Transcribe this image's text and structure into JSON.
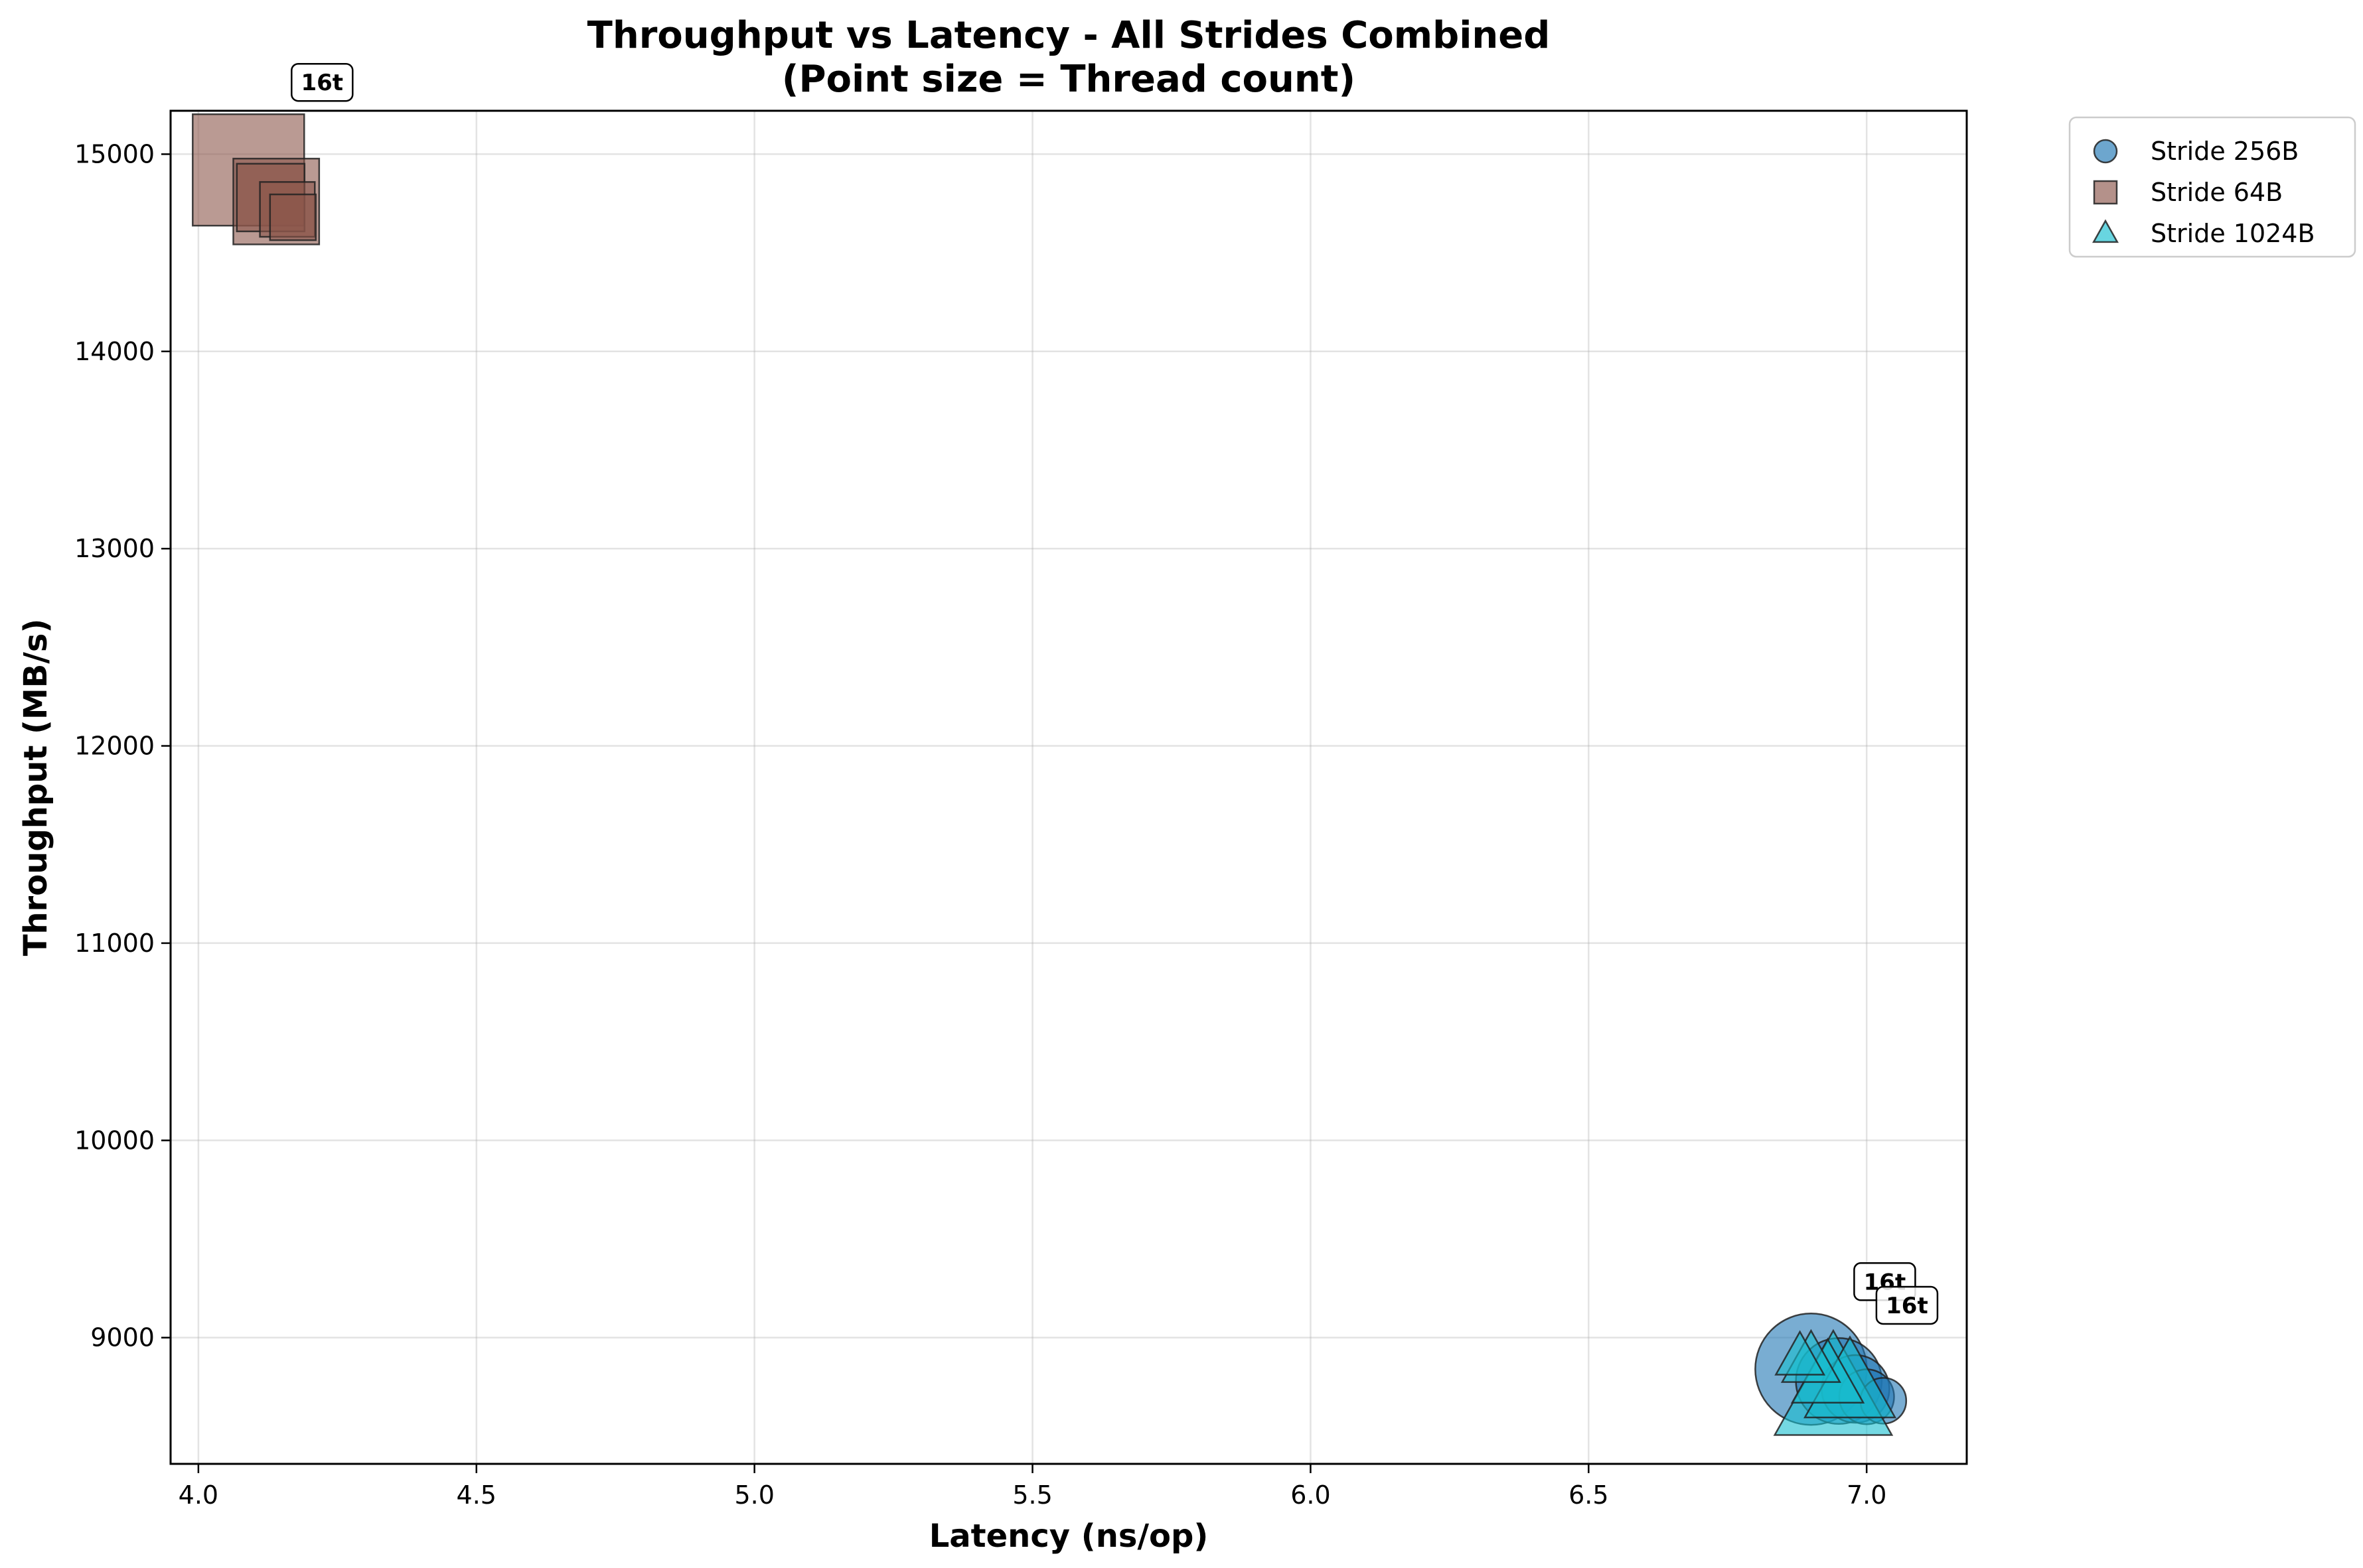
{
  "chart_data": {
    "type": "scatter",
    "title": "Throughput vs Latency - All Strides Combined",
    "subtitle": "(Point size = Thread count)",
    "xlabel": "Latency (ns/op)",
    "ylabel": "Throughput (MB/s)",
    "xlim": [
      3.95,
      7.18
    ],
    "ylim": [
      8360,
      15220
    ],
    "xticks": [
      "4.0",
      "4.5",
      "5.0",
      "5.5",
      "6.0",
      "6.5",
      "7.0"
    ],
    "yticks": [
      "9000",
      "10000",
      "11000",
      "12000",
      "13000",
      "14000",
      "15000"
    ],
    "grid": true,
    "legend_position": "outside-top-right",
    "series": [
      {
        "name": "Stride 256B",
        "marker": "circle",
        "color": "#1f77b4",
        "points": [
          {
            "x": 7.03,
            "y": 8680,
            "threads": 1
          },
          {
            "x": 7.0,
            "y": 8700,
            "threads": 2
          },
          {
            "x": 6.98,
            "y": 8740,
            "threads": 4
          },
          {
            "x": 6.95,
            "y": 8780,
            "threads": 8
          },
          {
            "x": 6.9,
            "y": 8840,
            "threads": 16
          }
        ]
      },
      {
        "name": "Stride 64B",
        "marker": "square",
        "color": "#8c564b",
        "points": [
          {
            "x": 4.17,
            "y": 14680,
            "threads": 1
          },
          {
            "x": 4.16,
            "y": 14720,
            "threads": 2
          },
          {
            "x": 4.13,
            "y": 14780,
            "threads": 4
          },
          {
            "x": 4.14,
            "y": 14760,
            "threads": 8
          },
          {
            "x": 4.09,
            "y": 14920,
            "threads": 16
          }
        ]
      },
      {
        "name": "Stride 1024B",
        "marker": "triangle",
        "color": "#17becf",
        "points": [
          {
            "x": 6.88,
            "y": 8900,
            "threads": 1
          },
          {
            "x": 6.9,
            "y": 8880,
            "threads": 2
          },
          {
            "x": 6.93,
            "y": 8800,
            "threads": 4
          },
          {
            "x": 6.97,
            "y": 8760,
            "threads": 8
          },
          {
            "x": 6.94,
            "y": 8720,
            "threads": 16
          }
        ]
      }
    ],
    "annotations": [
      {
        "text": "16t",
        "x": 4.09,
        "y": 14920,
        "series": "Stride 64B"
      },
      {
        "text": "16t",
        "x": 6.9,
        "y": 8840,
        "series": "Stride 256B"
      },
      {
        "text": "16t",
        "x": 6.94,
        "y": 8720,
        "series": "Stride 1024B"
      }
    ]
  }
}
